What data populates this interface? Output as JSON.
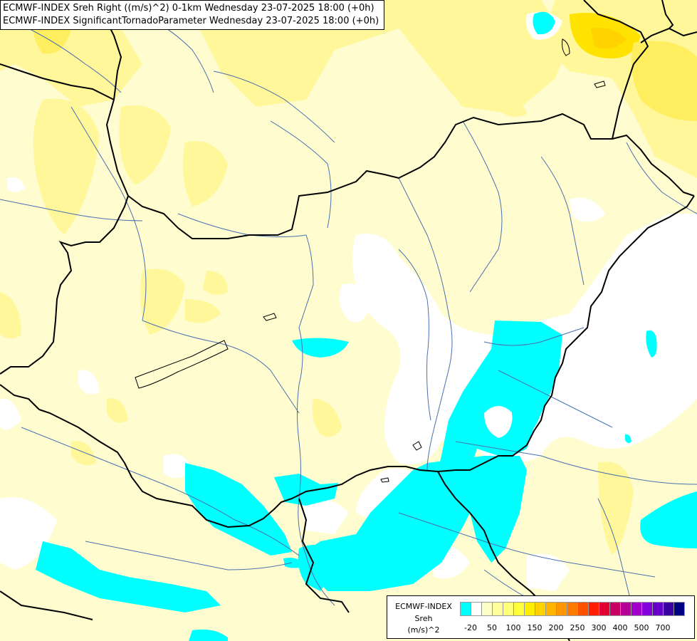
{
  "header": {
    "line1": "ECMWF-INDEX Sreh Right ((m/s)^2) 0-1km Wednesday 23-07-2025 18:00 (+0h)",
    "line2": "ECMWF-INDEX SignificantTornadoParameter Wednesday 23-07-2025 18:00 (+0h)"
  },
  "legend": {
    "source": "ECMWF-INDEX",
    "parameter": "Sreh",
    "unit": "(m/s)^2",
    "colors": [
      "#00ffff",
      "#ffffff",
      "#ffffc8",
      "#ffffa0",
      "#ffff78",
      "#ffff3c",
      "#ffee00",
      "#ffd200",
      "#ffb400",
      "#ff9600",
      "#ff7800",
      "#ff5000",
      "#ff1e00",
      "#e10032",
      "#c80064",
      "#b40096",
      "#a000c8",
      "#8200dc",
      "#6400c8",
      "#3c00a0",
      "#000082"
    ],
    "labels": [
      "-20",
      "50",
      "100",
      "150",
      "200",
      "250",
      "300",
      "400",
      "500",
      "700"
    ]
  },
  "palette": {
    "background": "#fffdd0",
    "yellow_light": "#fff79a",
    "yellow_mid": "#ffef60",
    "yellow_strong": "#ffe200",
    "cyan": "#00ffff",
    "white": "#ffffff",
    "border": "#000000",
    "river": "#4a6fb0"
  }
}
